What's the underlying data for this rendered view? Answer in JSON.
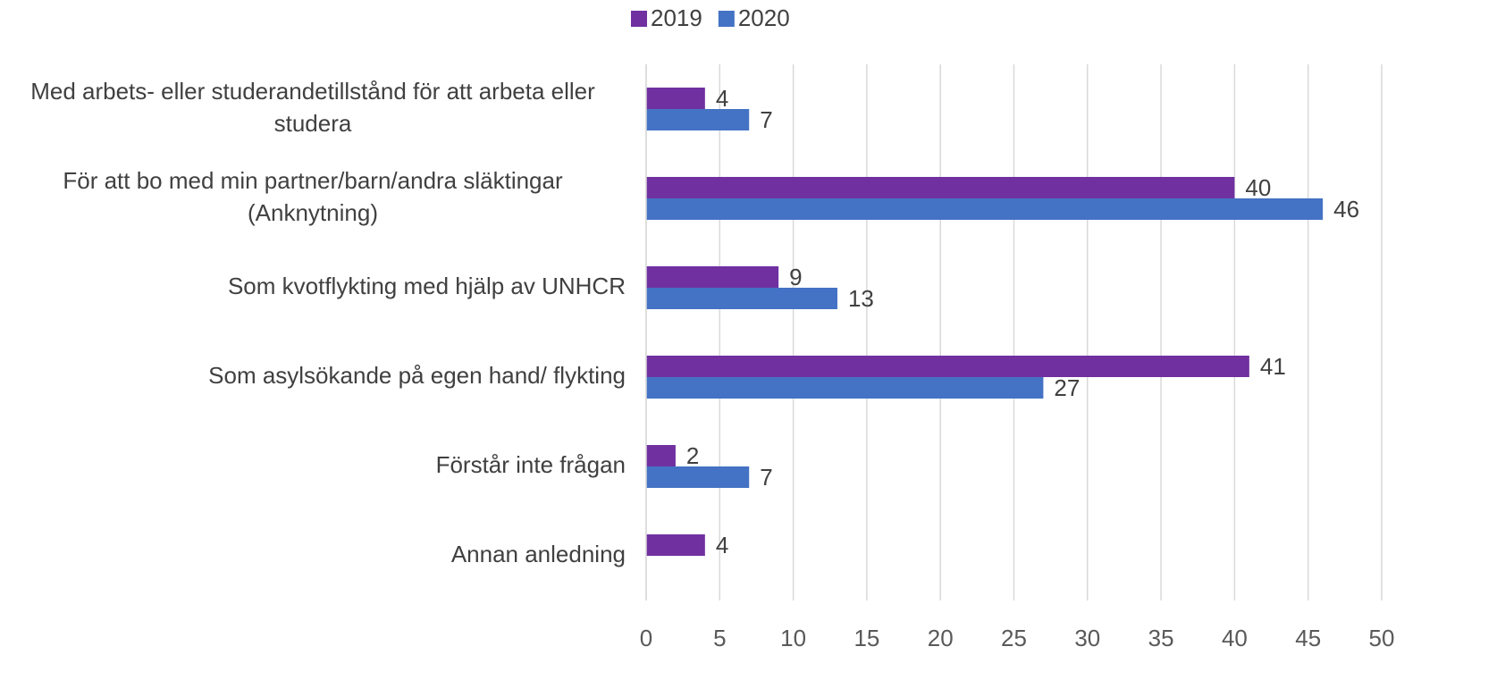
{
  "chart_data": {
    "type": "bar",
    "orientation": "horizontal",
    "categories": [
      "Med arbets- eller studerandetillstånd för att arbeta eller studera",
      "För att bo med min partner/barn/andra släktingar (Anknytning)",
      "Som kvotflykting med hjälp av UNHCR",
      "Som asylsökande på egen hand/ flykting",
      "Förstår inte frågan",
      "Annan anledning"
    ],
    "series": [
      {
        "name": "2019",
        "color": "#7030a0",
        "values": [
          4,
          40,
          9,
          41,
          2,
          4
        ]
      },
      {
        "name": "2020",
        "color": "#4472c4",
        "values": [
          7,
          46,
          13,
          27,
          7,
          null
        ]
      }
    ],
    "xlim": [
      0,
      50
    ],
    "xticks": [
      0,
      5,
      10,
      15,
      20,
      25,
      30,
      35,
      40,
      45,
      50
    ],
    "grid": true,
    "legend": "top"
  }
}
